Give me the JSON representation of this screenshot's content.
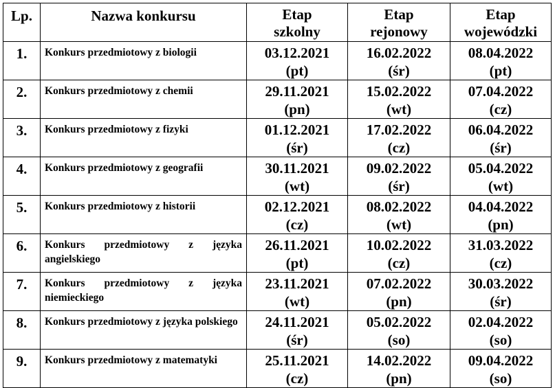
{
  "header": {
    "lp": "Lp.",
    "name": "Nazwa konkursu",
    "etap_szkolny": [
      "Etap",
      "szkolny"
    ],
    "etap_rejonowy": [
      "Etap",
      "rejonowy"
    ],
    "etap_wojewodzki": [
      "Etap",
      "wojewódzki"
    ]
  },
  "rows": [
    {
      "lp": "1.",
      "name": "Konkurs przedmiotowy z biologii",
      "szkolny": {
        "date": "03.12.2021",
        "day": "(pt)"
      },
      "rejonowy": {
        "date": "16.02.2022",
        "day": "(śr)"
      },
      "wojewodzki": {
        "date": "08.04.2022",
        "day": "(pt)"
      }
    },
    {
      "lp": "2.",
      "name": "Konkurs przedmiotowy z chemii",
      "szkolny": {
        "date": "29.11.2021",
        "day": "(pn)"
      },
      "rejonowy": {
        "date": "15.02.2022",
        "day": "(wt)"
      },
      "wojewodzki": {
        "date": "07.04.2022",
        "day": "(cz)"
      }
    },
    {
      "lp": "3.",
      "name": "Konkurs przedmiotowy z fizyki",
      "szkolny": {
        "date": "01.12.2021",
        "day": "(śr)"
      },
      "rejonowy": {
        "date": "17.02.2022",
        "day": "(cz)"
      },
      "wojewodzki": {
        "date": "06.04.2022",
        "day": "(śr)"
      }
    },
    {
      "lp": "4.",
      "name": "Konkurs przedmiotowy z geografii",
      "szkolny": {
        "date": "30.11.2021",
        "day": "(wt)"
      },
      "rejonowy": {
        "date": "09.02.2022",
        "day": "(śr)"
      },
      "wojewodzki": {
        "date": "05.04.2022",
        "day": "(wt)"
      }
    },
    {
      "lp": "5.",
      "name": "Konkurs przedmiotowy z historii",
      "szkolny": {
        "date": "02.12.2021",
        "day": "(cz)"
      },
      "rejonowy": {
        "date": "08.02.2022",
        "day": "(wt)"
      },
      "wojewodzki": {
        "date": "04.04.2022",
        "day": "(pn)"
      }
    },
    {
      "lp": "6.",
      "name": "Konkurs przedmiotowy z języka angielskiego",
      "szkolny": {
        "date": "26.11.2021",
        "day": "(pt)"
      },
      "rejonowy": {
        "date": "10.02.2022",
        "day": "(cz)"
      },
      "wojewodzki": {
        "date": "31.03.2022",
        "day": "(cz)"
      }
    },
    {
      "lp": "7.",
      "name": "Konkurs przedmiotowy z języka niemieckiego",
      "szkolny": {
        "date": "23.11.2021",
        "day": "(wt)"
      },
      "rejonowy": {
        "date": "07.02.2022",
        "day": "(pn)"
      },
      "wojewodzki": {
        "date": "30.03.2022",
        "day": "(śr)"
      }
    },
    {
      "lp": "8.",
      "name": "Konkurs przedmiotowy z języka polskiego",
      "szkolny": {
        "date": "24.11.2021",
        "day": "(śr)"
      },
      "rejonowy": {
        "date": "05.02.2022",
        "day": "(so)"
      },
      "wojewodzki": {
        "date": "02.04.2022",
        "day": "(so)"
      }
    },
    {
      "lp": "9.",
      "name": "Konkurs przedmiotowy z matematyki",
      "szkolny": {
        "date": "25.11.2021",
        "day": "(cz)"
      },
      "rejonowy": {
        "date": "14.02.2022",
        "day": "(pn)"
      },
      "wojewodzki": {
        "date": "09.04.2022",
        "day": "(so)"
      }
    }
  ]
}
